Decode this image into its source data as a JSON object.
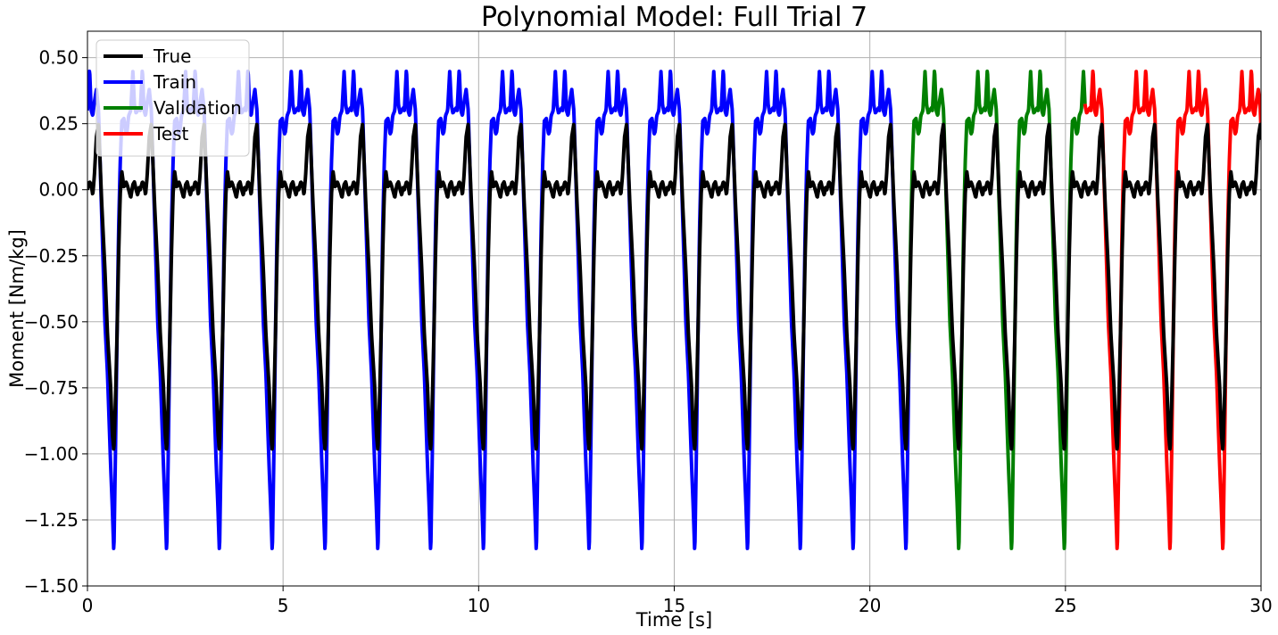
{
  "chart_data": {
    "type": "line",
    "title": "Polynomial Model: Full Trial 7",
    "xlabel": "Time [s]",
    "ylabel": "Moment [Nm/kg]",
    "xlim": [
      0,
      30
    ],
    "ylim": [
      -1.5,
      0.6
    ],
    "xticks": [
      0,
      5,
      10,
      15,
      20,
      25,
      30
    ],
    "xtick_labels": [
      "0",
      "5",
      "10",
      "15",
      "20",
      "25",
      "30"
    ],
    "yticks": [
      -1.5,
      -1.25,
      -1.0,
      -0.75,
      -0.5,
      -0.25,
      0.0,
      0.25,
      0.5
    ],
    "ytick_labels": [
      "−1.50",
      "−1.25",
      "−1.00",
      "−0.75",
      "−0.50",
      "−0.25",
      "0.00",
      "0.25",
      "0.50"
    ],
    "grid": true,
    "legend_position": "top-left",
    "period_s": 1.35,
    "series": [
      {
        "name": "True",
        "color": "#000000",
        "x_range": [
          0,
          30
        ],
        "cycle_shape": {
          "phase": [
            0.0,
            0.04,
            0.07,
            0.1,
            0.13,
            0.17,
            0.21,
            0.27,
            0.33,
            0.38,
            0.44,
            0.47,
            0.5,
            0.53,
            0.56,
            0.59,
            0.62,
            0.65,
            0.69,
            0.73,
            0.75,
            0.78,
            0.82,
            0.86,
            0.89,
            0.92,
            0.95,
            0.98,
            1.0
          ],
          "value": [
            0.0,
            0.03,
            0.02,
            -0.02,
            0.05,
            0.2,
            0.25,
            -0.05,
            -0.3,
            -0.55,
            -0.75,
            -0.92,
            -0.99,
            -0.8,
            -0.55,
            -0.25,
            -0.02,
            0.07,
            0.01,
            0.03,
            0.02,
            0.0,
            -0.03,
            0.02,
            0.03,
            0.0,
            -0.02,
            0.01,
            0.0
          ]
        }
      },
      {
        "name": "Train",
        "color": "#0000ff",
        "x_range": [
          0,
          21.0
        ],
        "cycle_shape": {
          "phase": [
            0.0,
            0.04,
            0.07,
            0.1,
            0.13,
            0.17,
            0.21,
            0.27,
            0.33,
            0.38,
            0.44,
            0.47,
            0.5,
            0.53,
            0.56,
            0.59,
            0.62,
            0.65,
            0.69,
            0.73,
            0.75,
            0.78,
            0.82,
            0.86,
            0.89,
            0.92,
            0.95,
            0.98,
            1.0
          ],
          "value": [
            0.3,
            0.46,
            0.3,
            0.28,
            0.33,
            0.38,
            0.3,
            -0.1,
            -0.5,
            -0.7,
            -1.05,
            -1.2,
            -1.38,
            -1.0,
            -0.55,
            -0.15,
            0.1,
            0.26,
            0.27,
            0.21,
            0.22,
            0.28,
            0.3,
            0.45,
            0.32,
            0.29,
            0.3,
            0.31,
            0.3
          ]
        }
      },
      {
        "name": "Validation",
        "color": "#008000",
        "x_range": [
          21.0,
          25.5
        ],
        "cycle_shape": {
          "phase": [
            0.0,
            0.04,
            0.07,
            0.1,
            0.13,
            0.17,
            0.21,
            0.27,
            0.33,
            0.38,
            0.44,
            0.47,
            0.5,
            0.53,
            0.56,
            0.59,
            0.62,
            0.65,
            0.69,
            0.73,
            0.75,
            0.78,
            0.82,
            0.86,
            0.89,
            0.92,
            0.95,
            0.98,
            1.0
          ],
          "value": [
            0.3,
            0.46,
            0.3,
            0.28,
            0.33,
            0.38,
            0.3,
            -0.1,
            -0.5,
            -0.7,
            -1.05,
            -1.2,
            -1.38,
            -1.0,
            -0.55,
            -0.15,
            0.1,
            0.26,
            0.27,
            0.21,
            0.22,
            0.28,
            0.3,
            0.45,
            0.32,
            0.29,
            0.3,
            0.31,
            0.3
          ]
        }
      },
      {
        "name": "Test",
        "color": "#ff0000",
        "x_range": [
          25.5,
          30
        ],
        "cycle_shape": {
          "phase": [
            0.0,
            0.04,
            0.07,
            0.1,
            0.13,
            0.17,
            0.21,
            0.27,
            0.33,
            0.38,
            0.44,
            0.47,
            0.5,
            0.53,
            0.56,
            0.59,
            0.62,
            0.65,
            0.69,
            0.73,
            0.75,
            0.78,
            0.82,
            0.86,
            0.89,
            0.92,
            0.95,
            0.98,
            1.0
          ],
          "value": [
            0.3,
            0.46,
            0.3,
            0.28,
            0.33,
            0.38,
            0.3,
            -0.1,
            -0.5,
            -0.7,
            -1.05,
            -1.2,
            -1.38,
            -1.0,
            -0.55,
            -0.15,
            0.1,
            0.26,
            0.27,
            0.21,
            0.22,
            0.28,
            0.3,
            0.45,
            0.32,
            0.29,
            0.3,
            0.31,
            0.3
          ]
        }
      }
    ]
  }
}
